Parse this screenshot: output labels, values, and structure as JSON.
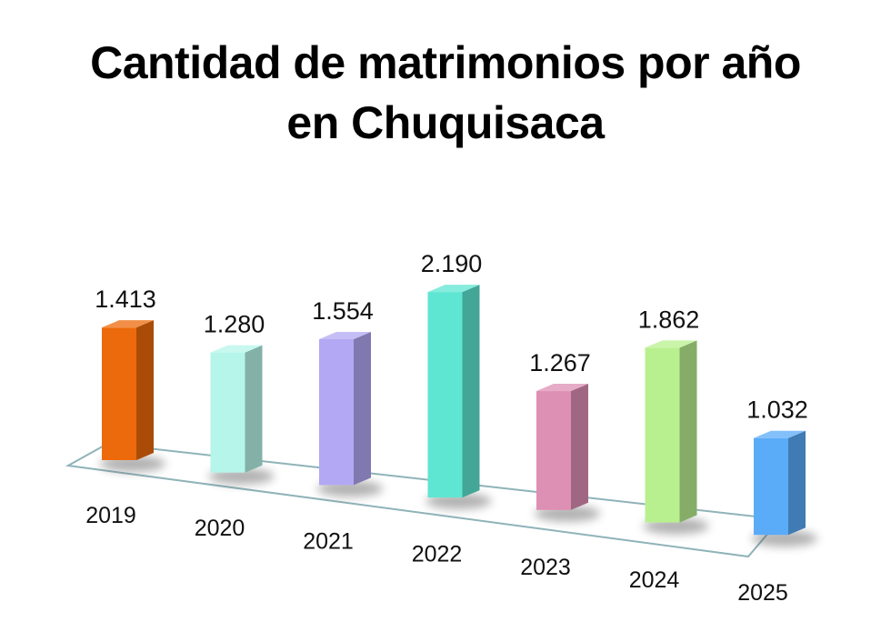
{
  "chart_data": {
    "type": "bar",
    "title": "Cantidad de matrimonios por año",
    "subtitle": "en Chuquisaca",
    "categories": [
      "2019",
      "2020",
      "2021",
      "2022",
      "2023",
      "2024",
      "2025"
    ],
    "values": [
      1413,
      1280,
      1554,
      2190,
      1267,
      1862,
      1032
    ],
    "value_labels": [
      "1.413",
      "1.280",
      "1.554",
      "2.190",
      "1.267",
      "1.862",
      "1.032"
    ],
    "colors": [
      "#ec6a0b",
      "#b6f6ea",
      "#b2a8f3",
      "#5ee6d2",
      "#de8fb4",
      "#b9f08f",
      "#5aabf8"
    ],
    "ylim": [
      0,
      2190
    ],
    "grid": false,
    "legend": "none",
    "xlabel": "",
    "ylabel": ""
  }
}
